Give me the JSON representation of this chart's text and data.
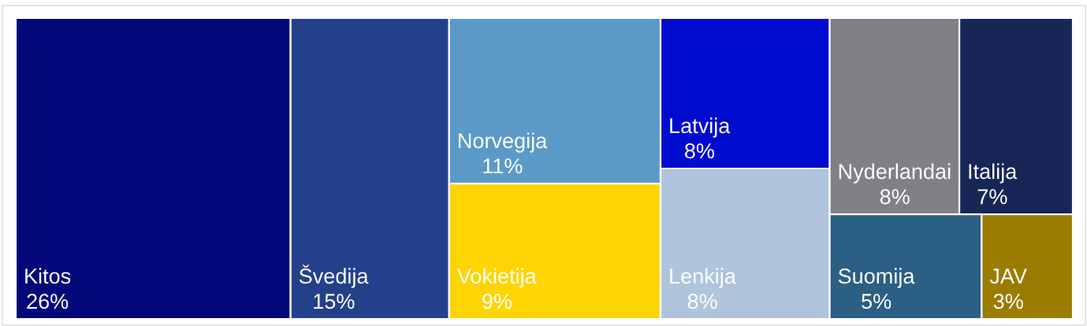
{
  "chart_data": {
    "type": "other",
    "categories": [
      "Kitos",
      "Švedija",
      "Norvegija",
      "Vokietija",
      "Latvija",
      "Lenkija",
      "Nyderlandai",
      "Italija",
      "Suomija",
      "JAV"
    ],
    "values": [
      26,
      15,
      11,
      9,
      8,
      8,
      8,
      7,
      5,
      3
    ],
    "value_labels": [
      "26%",
      "15%",
      "11%",
      "9%",
      "8%",
      "8%",
      "8%",
      "7%",
      "5%",
      "3%"
    ],
    "colors": [
      "#02077a",
      "#25408b",
      "#5b9ac7",
      "#ffd403",
      "#000bd0",
      "#b0c4dd",
      "#808184",
      "#172656",
      "#2c5f84",
      "#9a7d00"
    ]
  }
}
